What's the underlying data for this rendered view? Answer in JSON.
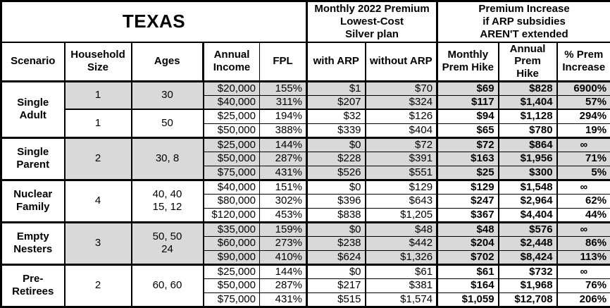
{
  "chart_data": {
    "type": "table",
    "title": "TEXAS",
    "column_group_headers": {
      "premium_2022": "Monthly 2022 Premium\nLowest-Cost\nSilver plan",
      "premium_increase": "Premium Increase\nif ARP subsidies\nAREN'T extended"
    },
    "columns": [
      "Scenario",
      "Household\nSize",
      "Ages",
      "Annual\nIncome",
      "FPL",
      "with ARP",
      "without ARP",
      "Monthly\nPrem Hike",
      "Annual\nPrem Hike",
      "% Prem\nIncrease"
    ],
    "data_column_keys": [
      "annual_income",
      "fpl",
      "with_arp",
      "without_arp",
      "monthly_prem_hike",
      "annual_prem_hike",
      "pct_prem_increase"
    ],
    "groups": [
      {
        "scenario": "Single\nAdult",
        "subgroups": [
          {
            "household_size": "1",
            "ages": "30",
            "shaded": true,
            "rows": [
              [
                "$20,000",
                "155%",
                "$1",
                "$70",
                "$69",
                "$828",
                "6900%"
              ],
              [
                "$40,000",
                "311%",
                "$207",
                "$324",
                "$117",
                "$1,404",
                "57%"
              ]
            ]
          },
          {
            "household_size": "1",
            "ages": "50",
            "shaded": false,
            "rows": [
              [
                "$25,000",
                "194%",
                "$32",
                "$126",
                "$94",
                "$1,128",
                "294%"
              ],
              [
                "$50,000",
                "388%",
                "$339",
                "$404",
                "$65",
                "$780",
                "19%"
              ]
            ]
          }
        ]
      },
      {
        "scenario": "Single\nParent",
        "subgroups": [
          {
            "household_size": "2",
            "ages": "30, 8",
            "shaded": true,
            "rows": [
              [
                "$25,000",
                "144%",
                "$0",
                "$72",
                "$72",
                "$864",
                "∞"
              ],
              [
                "$50,000",
                "287%",
                "$228",
                "$391",
                "$163",
                "$1,956",
                "71%"
              ],
              [
                "$75,000",
                "431%",
                "$526",
                "$551",
                "$25",
                "$300",
                "5%"
              ]
            ]
          }
        ]
      },
      {
        "scenario": "Nuclear\nFamily",
        "subgroups": [
          {
            "household_size": "4",
            "ages": "40, 40\n15, 12",
            "shaded": false,
            "rows": [
              [
                "$40,000",
                "151%",
                "$0",
                "$129",
                "$129",
                "$1,548",
                "∞"
              ],
              [
                "$80,000",
                "302%",
                "$396",
                "$643",
                "$247",
                "$2,964",
                "62%"
              ],
              [
                "$120,000",
                "453%",
                "$838",
                "$1,205",
                "$367",
                "$4,404",
                "44%"
              ]
            ]
          }
        ]
      },
      {
        "scenario": "Empty\nNesters",
        "subgroups": [
          {
            "household_size": "3",
            "ages": "50, 50\n24",
            "shaded": true,
            "rows": [
              [
                "$35,000",
                "159%",
                "$0",
                "$48",
                "$48",
                "$576",
                "∞"
              ],
              [
                "$60,000",
                "273%",
                "$238",
                "$442",
                "$204",
                "$2,448",
                "86%"
              ],
              [
                "$90,000",
                "410%",
                "$624",
                "$1,326",
                "$702",
                "$8,424",
                "113%"
              ]
            ]
          }
        ]
      },
      {
        "scenario": "Pre-\nRetirees",
        "subgroups": [
          {
            "household_size": "2",
            "ages": "60, 60",
            "shaded": false,
            "rows": [
              [
                "$25,000",
                "144%",
                "$0",
                "$61",
                "$61",
                "$732",
                "∞"
              ],
              [
                "$50,000",
                "287%",
                "$217",
                "$381",
                "$164",
                "$1,968",
                "76%"
              ],
              [
                "$75,000",
                "431%",
                "$515",
                "$1,574",
                "$1,059",
                "$12,708",
                "206%"
              ]
            ]
          }
        ]
      }
    ],
    "colors": {
      "shaded_row": "#d9d9d9",
      "border": "#000000",
      "text": "#000000",
      "background": "#ffffff"
    }
  }
}
